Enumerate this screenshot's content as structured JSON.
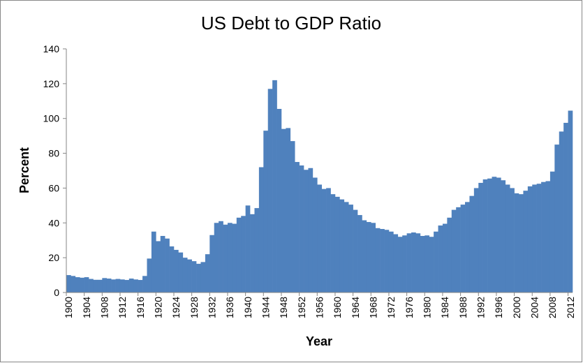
{
  "chart_data": {
    "type": "bar",
    "title": "US Debt to GDP Ratio",
    "xlabel": "Year",
    "ylabel": "Percent",
    "ylim": [
      0,
      140
    ],
    "yticks": [
      0,
      20,
      40,
      60,
      80,
      100,
      120,
      140
    ],
    "x_start": 1900,
    "x_tick_step": 4,
    "bar_color": "#4F81BD",
    "grid": false,
    "values": [
      10,
      9.5,
      8.8,
      8.5,
      8.8,
      7.8,
      7.3,
      7.3,
      8.3,
      8,
      7.5,
      7.8,
      7.5,
      7.2,
      8,
      7.5,
      7.2,
      9.5,
      19.5,
      35,
      29.5,
      32.5,
      31,
      26.5,
      24.5,
      23,
      20,
      19,
      18,
      16.5,
      17.5,
      22,
      33,
      40,
      41,
      39,
      40,
      39.5,
      43,
      44,
      50,
      45,
      48.5,
      72,
      93,
      117,
      122,
      105.5,
      94,
      94.5,
      87,
      75,
      73,
      70.5,
      71.5,
      66,
      62,
      59.5,
      60,
      56.5,
      55,
      53.5,
      52,
      50.5,
      47.5,
      44.5,
      41.5,
      40.5,
      40,
      37,
      36.5,
      36,
      35,
      33.5,
      32,
      32.8,
      34,
      34.5,
      34,
      32.5,
      32.8,
      32,
      35,
      38.5,
      39.5,
      43,
      47.5,
      49,
      50.5,
      52,
      55.5,
      60,
      63,
      65,
      65.5,
      66.5,
      66,
      64.5,
      62,
      60,
      57,
      56.5,
      58.5,
      61,
      62,
      62.5,
      63.5,
      64,
      69.5,
      85,
      92.5,
      97.5,
      104.5
    ]
  }
}
